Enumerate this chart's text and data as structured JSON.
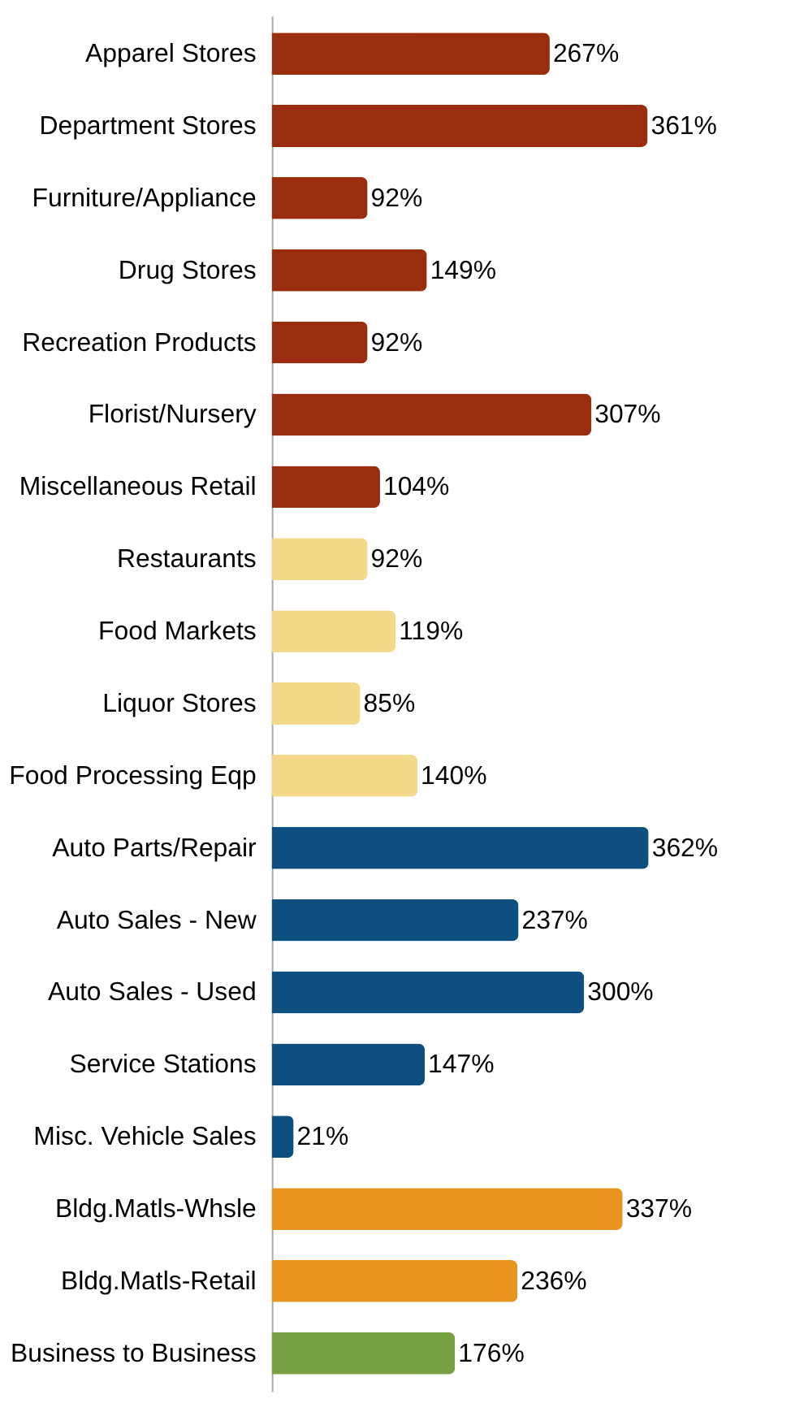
{
  "chart_data": {
    "type": "bar",
    "orientation": "horizontal",
    "relative": false,
    "categories": [
      "Apparel Stores",
      "Department Stores",
      "Furniture/Appliance",
      "Drug Stores",
      "Recreation Products",
      "Florist/Nursery",
      "Miscellaneous Retail",
      "Restaurants",
      "Food Markets",
      "Liquor Stores",
      "Food Processing Eqp",
      "Auto Parts/Repair",
      "Auto Sales - New",
      "Auto Sales - Used",
      "Service Stations",
      "Misc. Vehicle Sales",
      "Bldg.Matls-Whsle",
      "Bldg.Matls-Retail",
      "Business to Business"
    ],
    "values": [
      267,
      361,
      92,
      149,
      92,
      307,
      104,
      92,
      119,
      85,
      140,
      362,
      237,
      300,
      147,
      21,
      337,
      236,
      176
    ],
    "value_labels": [
      "267%",
      "361%",
      "92%",
      "149%",
      "92%",
      "307%",
      "104%",
      "92%",
      "119%",
      "85%",
      "140%",
      "362%",
      "237%",
      "300%",
      "147%",
      "21%",
      "337%",
      "236%",
      "176%"
    ],
    "colors": [
      "#9b2d0f",
      "#9b2d0f",
      "#9b2d0f",
      "#9b2d0f",
      "#9b2d0f",
      "#9b2d0f",
      "#9b2d0f",
      "#f5d98a",
      "#f5d98a",
      "#f5d98a",
      "#f5d98a",
      "#0d5080",
      "#0d5080",
      "#0d5080",
      "#0d5080",
      "#0d5080",
      "#e8941f",
      "#e8941f",
      "#77a040"
    ],
    "grid": false
  }
}
